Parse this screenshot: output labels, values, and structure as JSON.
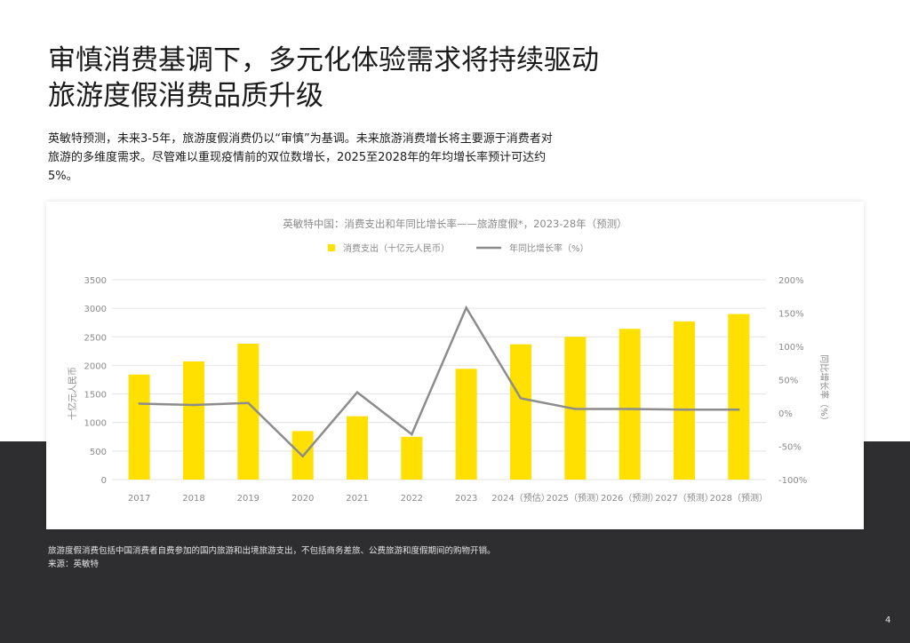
{
  "title_lines": [
    "审慎消费基调下，多元化体验需求将持续驱动",
    "旅游度假消费品质升级"
  ],
  "intro_text": "英敏特预测，未来3-5年，旅游度假消费仍以“审慎”为基调。未来旅游消费增长将主要源于消费者对旅游的多维度需求。尽管难以重现疫情前的双位数增长，2025至2028年的年均增长率预计可达约5%。",
  "footnote": "旅游度假消费包括中国消费者自费参加的国内旅游和出境旅游支出，不包括商务差旅、公费旅游和度假期间的购物开销。",
  "source": "来源：英敏特",
  "page_number": "4",
  "colors": {
    "bar": "#ffe000",
    "line": "#8c8c8c",
    "dark_band": "#2e2e30",
    "grid": "#e4e4e4"
  },
  "chart_data": {
    "type": "bar",
    "title": "英敏特中国：消费支出和年同比增长率——旅游度假*，2023-28年（预测）",
    "categories": [
      "2017",
      "2018",
      "2019",
      "2020",
      "2021",
      "2022",
      "2023",
      "2024（预估）",
      "2025（预测）",
      "2026（预测）",
      "2027（预测）",
      "2028（预测）"
    ],
    "ylabel": "十亿元人民币",
    "y2label": "同比增长率（%）",
    "ylim": [
      0,
      3500
    ],
    "yticks": [
      "0",
      "500",
      "1000",
      "1500",
      "2000",
      "2500",
      "3000",
      "3500"
    ],
    "y2lim": [
      -100,
      200
    ],
    "y2ticks": [
      "-100%",
      "-50%",
      "0%",
      "50%",
      "100%",
      "150%",
      "200%"
    ],
    "grid": true,
    "legend_position": "top-center",
    "series": [
      {
        "name": "消费支出（十亿元人民币）",
        "type": "bar",
        "axis": "left",
        "values": [
          1840,
          2070,
          2380,
          850,
          1110,
          750,
          1940,
          2370,
          2500,
          2640,
          2770,
          2900
        ]
      },
      {
        "name": "年同比增长率（%）",
        "type": "line",
        "axis": "right",
        "values": [
          14,
          12,
          15,
          -65,
          31,
          -32,
          158,
          22,
          6,
          6,
          5,
          5
        ]
      }
    ]
  }
}
